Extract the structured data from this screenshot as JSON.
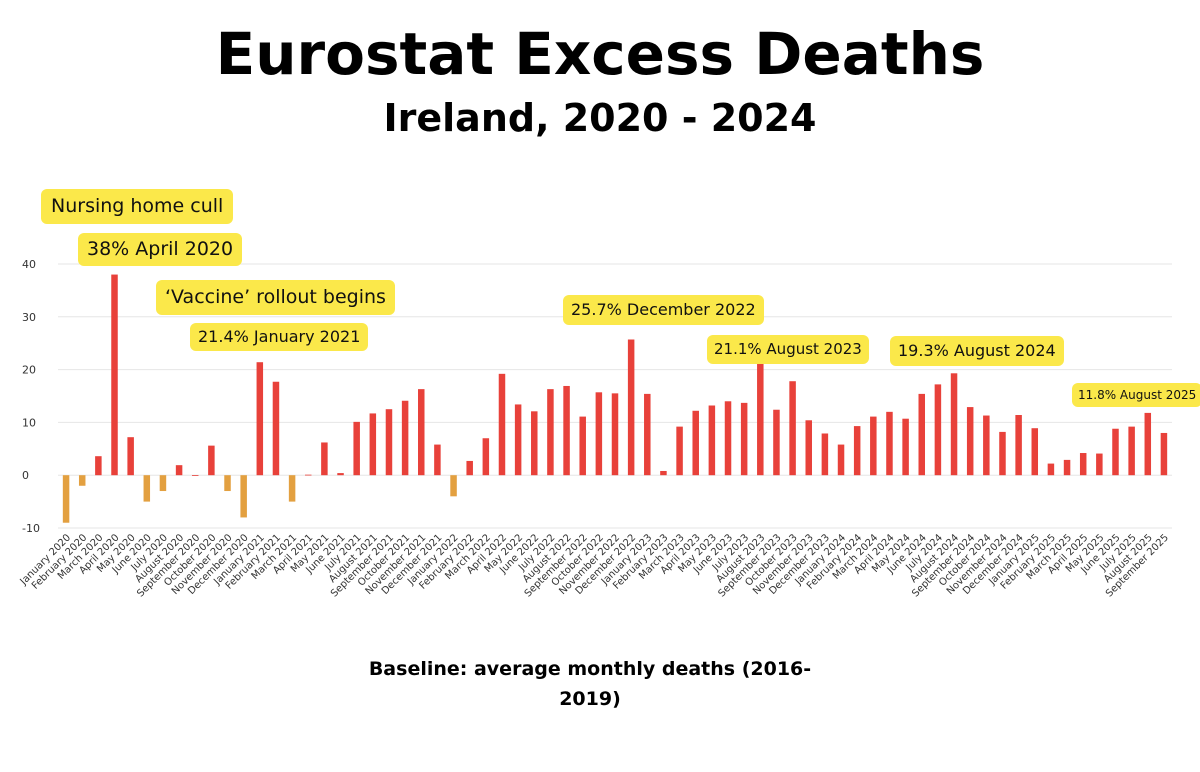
{
  "title": "Eurostat Excess Deaths",
  "subtitle": "Ireland, 2020 - 2024",
  "note": "Baseline: average monthly deaths  (2016-2019)",
  "colors": {
    "positive": "#e8413a",
    "negative": "#e3a040",
    "callout": "#fbe84a"
  },
  "annotations": {
    "a1": "Nursing home cull",
    "a2": "38% April 2020",
    "a3": "‘Vaccine’ rollout begins",
    "a4": "21.4% January 2021",
    "a5": "25.7% December 2022",
    "a6": "21.1% August 2023",
    "a7": "19.3% August 2024",
    "a8": "11.8% August 2025"
  },
  "chart_data": {
    "type": "bar",
    "title": "Eurostat Excess Deaths",
    "subtitle": "Ireland, 2020 - 2024",
    "xlabel": "",
    "ylabel": "",
    "ylim": [
      -10,
      40
    ],
    "yticks": [
      -10,
      0,
      10,
      20,
      30,
      40
    ],
    "grid": true,
    "categories": [
      "January 2020",
      "February 2020",
      "March 2020",
      "April 2020",
      "May 2020",
      "June 2020",
      "July 2020",
      "August 2020",
      "September 2020",
      "October 2020",
      "November 2020",
      "December 2020",
      "January 2021",
      "February 2021",
      "March 2021",
      "April 2021",
      "May 2021",
      "June 2021",
      "July 2021",
      "August 2021",
      "September 2021",
      "October 2021",
      "November 2021",
      "December 2021",
      "January 2022",
      "February 2022",
      "March 2022",
      "April 2022",
      "May 2022",
      "June 2022",
      "July 2022",
      "August 2022",
      "September 2022",
      "October 2022",
      "November 2022",
      "December 2022",
      "January 2023",
      "February 2023",
      "March 2023",
      "April 2023",
      "May 2023",
      "June 2023",
      "July 2023",
      "August 2023",
      "September 2023",
      "October 2023",
      "November 2023",
      "December 2023",
      "January 2024",
      "February 2024",
      "March 2024",
      "April 2024",
      "May 2024",
      "June 2024",
      "July 2024",
      "August 2024",
      "September 2024",
      "October 2024",
      "November 2024",
      "December 2024",
      "January 2025",
      "February 2025",
      "March 2025",
      "April 2025",
      "May 2025",
      "June 2025",
      "July 2025",
      "August 2025",
      "September 2025"
    ],
    "values": [
      -9,
      -2,
      3.6,
      38,
      7.2,
      -5,
      -3,
      1.9,
      0,
      5.6,
      -3,
      -8,
      21.4,
      17.7,
      -5,
      0.1,
      6.2,
      0.4,
      10.1,
      11.7,
      12.5,
      14.1,
      16.3,
      5.8,
      -4,
      2.7,
      7,
      19.2,
      13.4,
      12.1,
      16.3,
      16.9,
      11.1,
      15.7,
      15.5,
      25.7,
      15.4,
      0.8,
      9.2,
      12.2,
      13.2,
      14,
      13.7,
      21.1,
      12.4,
      17.8,
      10.4,
      7.9,
      5.8,
      9.3,
      11.1,
      12,
      10.7,
      15.4,
      17.2,
      19.3,
      12.9,
      11.3,
      8.2,
      11.4,
      8.9,
      2.2,
      2.9,
      4.2,
      4.1,
      8.8,
      9.2,
      11.8,
      8
    ]
  }
}
